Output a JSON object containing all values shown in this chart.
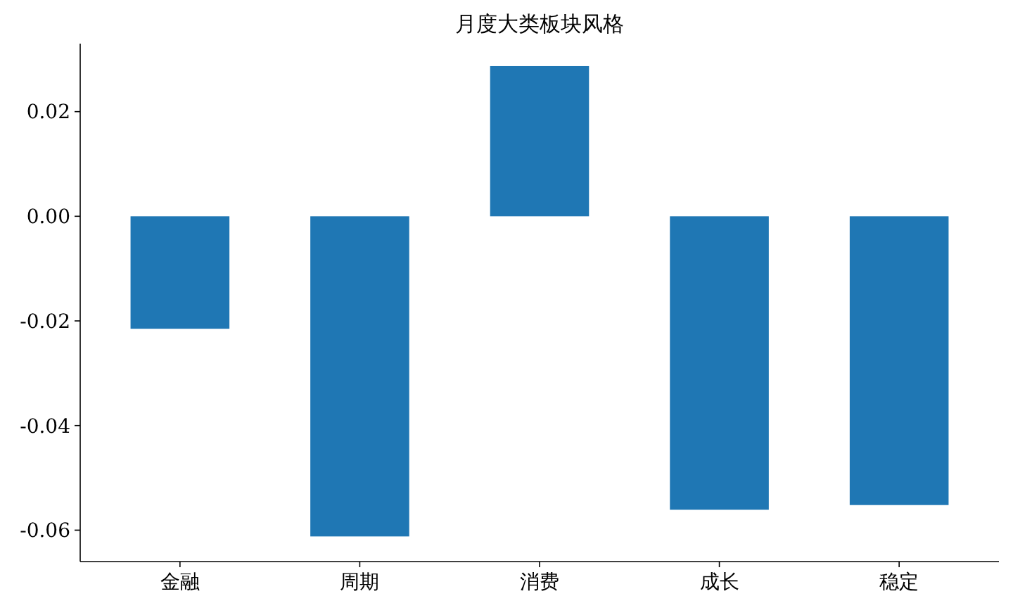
{
  "chart_data": {
    "type": "bar",
    "title": "月度大类板块风格",
    "categories": [
      "金融",
      "周期",
      "消费",
      "成长",
      "稳定"
    ],
    "values": [
      -0.0215,
      -0.0612,
      0.0287,
      -0.0561,
      -0.0552
    ],
    "color": "#1f77b4",
    "ylim": [
      -0.066,
      0.033
    ],
    "yticks": [
      {
        "value": -0.06,
        "label": "-0.06"
      },
      {
        "value": -0.04,
        "label": "-0.04"
      },
      {
        "value": -0.02,
        "label": "-0.02"
      },
      {
        "value": 0,
        "label": "0.00"
      },
      {
        "value": 0.02,
        "label": "0.02"
      }
    ],
    "grid": false
  }
}
